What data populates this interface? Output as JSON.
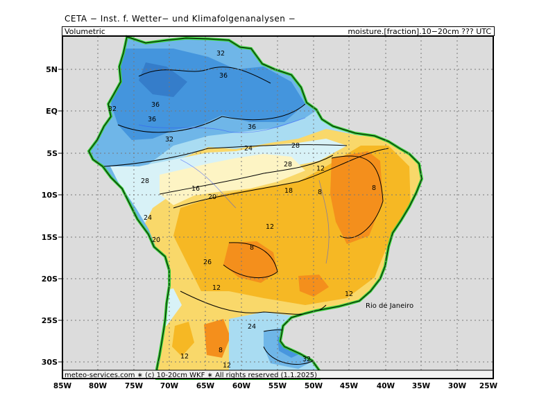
{
  "header": {
    "source": "CETA − Inst. f. Wetter− und Klimafolgenanalysen −",
    "variable": "Volumetric",
    "product": "moisture.[fraction].10−20cm ??? UTC"
  },
  "axes": {
    "lat_labels": [
      "5N",
      "EQ",
      "5S",
      "10S",
      "15S",
      "20S",
      "25S",
      "30S"
    ],
    "lon_labels": [
      "85W",
      "80W",
      "75W",
      "70W",
      "65W",
      "60W",
      "55W",
      "50W",
      "45W",
      "40W",
      "35W",
      "30W",
      "25W"
    ]
  },
  "contour_labels": [
    "32",
    "36",
    "32",
    "36",
    "36",
    "36",
    "32",
    "24",
    "28",
    "28",
    "28",
    "12",
    "8",
    "8",
    "16",
    "20",
    "18",
    "24",
    "20",
    "12",
    "8",
    "26",
    "12",
    "12",
    "24",
    "12",
    "8",
    "32",
    "12"
  ],
  "city": "Rio de Janeiro",
  "footer": "meteo-services.com ∗ (c) 10-20cm WKF ∗ All rights reserved (1.1.2025)",
  "colors": {
    "background": "#dcdcdc",
    "wettest": "#3d8fdb",
    "wet": "#6fb6e8",
    "moist": "#a9dcf2",
    "medium": "#d8f2f7",
    "neutral": "#fdf4c4",
    "dryish": "#f9d86a",
    "dry": "#f6b824",
    "driest": "#f48f1c",
    "very_dry": "#e56f0f",
    "coast": "#33cc33"
  }
}
